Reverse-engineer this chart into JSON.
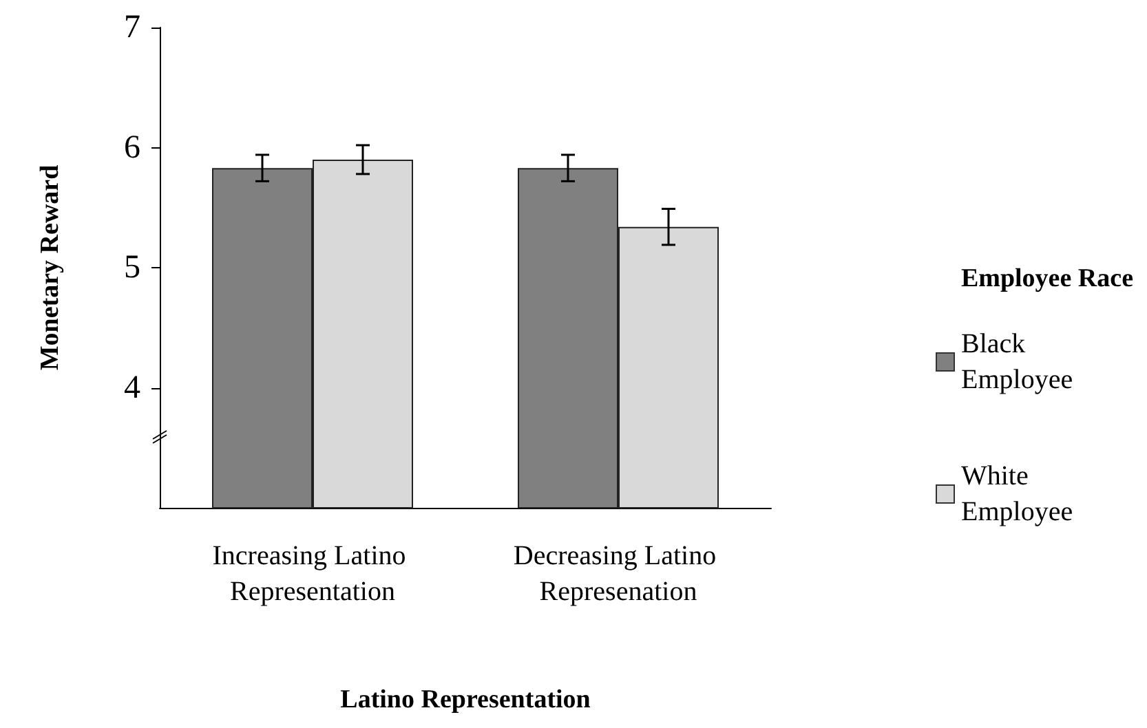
{
  "chart_data": {
    "type": "bar",
    "xlabel": "Latino Representation",
    "ylabel": "Monetary Reward",
    "legend_title": "Employee Race",
    "categories": [
      "Increasing Latino Representation",
      "Decreasing Latino Represenation"
    ],
    "series": [
      {
        "name": "Black Employee",
        "color": "#808080",
        "values": [
          5.83,
          5.83
        ],
        "errors": [
          0.11,
          0.11
        ]
      },
      {
        "name": "White Employee",
        "color": "#d9d9d9",
        "values": [
          5.9,
          5.34
        ],
        "errors": [
          0.12,
          0.15
        ]
      }
    ],
    "ylim": [
      3,
      7
    ],
    "yticks": [
      4,
      5,
      6,
      7
    ],
    "grid": false,
    "legend": "right"
  }
}
